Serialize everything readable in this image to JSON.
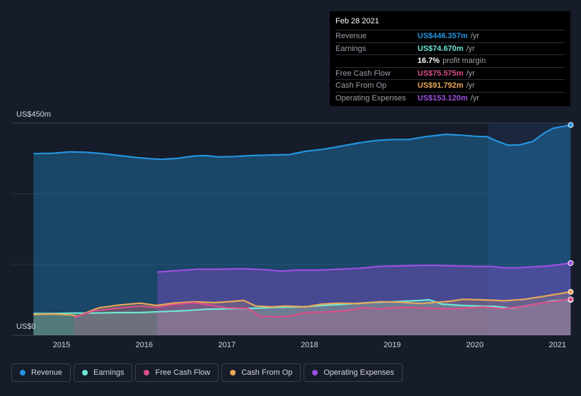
{
  "tooltip": {
    "date": "Feb 28 2021",
    "rows": [
      {
        "label": "Revenue",
        "value": "US$446.357m",
        "unit": "/yr",
        "color": "#2394df"
      },
      {
        "label": "Earnings",
        "value": "US$74.670m",
        "unit": "/yr",
        "color": "#6ee7d6"
      },
      {
        "label": "",
        "value": "16.7%",
        "unit": "profit margin",
        "color": "#ffffff"
      },
      {
        "label": "Free Cash Flow",
        "value": "US$75.575m",
        "unit": "/yr",
        "color": "#d94f8a"
      },
      {
        "label": "Cash From Op",
        "value": "US$91.792m",
        "unit": "/yr",
        "color": "#e8a85a"
      },
      {
        "label": "Operating Expenses",
        "value": "US$153.120m",
        "unit": "/yr",
        "color": "#9d4fe0"
      }
    ]
  },
  "chart_data": {
    "type": "area",
    "y_top_label": "US$450m",
    "y_bottom_label": "US$0",
    "ylim": [
      0,
      450
    ],
    "xlim": [
      2014.62,
      2021.16
    ],
    "x_ticks": [
      "2015",
      "2016",
      "2017",
      "2018",
      "2019",
      "2020",
      "2021"
    ],
    "legend_position": "bottom",
    "grid": true,
    "series": [
      {
        "name": "Revenue",
        "color": "#2394df",
        "points": [
          [
            2014.66,
            385
          ],
          [
            2014.9,
            386
          ],
          [
            2015.1,
            389
          ],
          [
            2015.3,
            388
          ],
          [
            2015.5,
            385
          ],
          [
            2015.7,
            381
          ],
          [
            2015.9,
            377
          ],
          [
            2016.1,
            374
          ],
          [
            2016.2,
            373
          ],
          [
            2016.4,
            375
          ],
          [
            2016.6,
            380
          ],
          [
            2016.75,
            381
          ],
          [
            2016.9,
            378
          ],
          [
            2017.1,
            379
          ],
          [
            2017.3,
            381
          ],
          [
            2017.5,
            382
          ],
          [
            2017.75,
            383
          ],
          [
            2017.95,
            390
          ],
          [
            2018.15,
            394
          ],
          [
            2018.35,
            400
          ],
          [
            2018.6,
            408
          ],
          [
            2018.8,
            413
          ],
          [
            2019.0,
            415
          ],
          [
            2019.2,
            415
          ],
          [
            2019.4,
            421
          ],
          [
            2019.65,
            426
          ],
          [
            2019.85,
            424
          ],
          [
            2020.0,
            422
          ],
          [
            2020.15,
            421
          ],
          [
            2020.25,
            413
          ],
          [
            2020.4,
            403
          ],
          [
            2020.55,
            404
          ],
          [
            2020.7,
            411
          ],
          [
            2020.85,
            430
          ],
          [
            2020.95,
            439
          ],
          [
            2021.16,
            446
          ]
        ]
      },
      {
        "name": "Operating Expenses",
        "color": "#9d4fe0",
        "points": [
          [
            2016.16,
            134
          ],
          [
            2016.4,
            137
          ],
          [
            2016.65,
            140
          ],
          [
            2016.9,
            140
          ],
          [
            2017.2,
            141
          ],
          [
            2017.45,
            139
          ],
          [
            2017.65,
            136
          ],
          [
            2017.85,
            138
          ],
          [
            2018.1,
            138
          ],
          [
            2018.35,
            140
          ],
          [
            2018.6,
            142
          ],
          [
            2018.85,
            146
          ],
          [
            2019.1,
            147
          ],
          [
            2019.35,
            148
          ],
          [
            2019.55,
            148
          ],
          [
            2019.75,
            147
          ],
          [
            2020.0,
            146
          ],
          [
            2020.2,
            146
          ],
          [
            2020.35,
            143
          ],
          [
            2020.5,
            143
          ],
          [
            2020.7,
            145
          ],
          [
            2020.9,
            147
          ],
          [
            2021.16,
            153
          ]
        ]
      },
      {
        "name": "Earnings",
        "color": "#6ee7d6",
        "points": [
          [
            2014.66,
            46
          ],
          [
            2014.9,
            46
          ],
          [
            2015.15,
            47
          ],
          [
            2015.4,
            47
          ],
          [
            2015.7,
            48
          ],
          [
            2015.95,
            48
          ],
          [
            2016.2,
            50
          ],
          [
            2016.5,
            52
          ],
          [
            2016.75,
            55
          ],
          [
            2017.0,
            56
          ],
          [
            2017.3,
            57
          ],
          [
            2017.6,
            59
          ],
          [
            2017.9,
            60
          ],
          [
            2018.15,
            63
          ],
          [
            2018.45,
            66
          ],
          [
            2018.7,
            69
          ],
          [
            2019.0,
            71
          ],
          [
            2019.25,
            73
          ],
          [
            2019.45,
            75
          ],
          [
            2019.6,
            66
          ],
          [
            2019.85,
            63
          ],
          [
            2020.05,
            62
          ],
          [
            2020.25,
            61
          ],
          [
            2020.45,
            57
          ],
          [
            2020.6,
            62
          ],
          [
            2020.8,
            68
          ],
          [
            2020.95,
            73
          ],
          [
            2021.16,
            75
          ]
        ]
      },
      {
        "name": "Cash From Op",
        "color": "#e8a85a",
        "points": [
          [
            2014.66,
            44
          ],
          [
            2014.9,
            45
          ],
          [
            2015.1,
            43
          ],
          [
            2015.2,
            41
          ],
          [
            2015.45,
            58
          ],
          [
            2015.7,
            64
          ],
          [
            2015.95,
            68
          ],
          [
            2016.15,
            63
          ],
          [
            2016.35,
            68
          ],
          [
            2016.6,
            71
          ],
          [
            2016.85,
            69
          ],
          [
            2017.1,
            72
          ],
          [
            2017.2,
            74
          ],
          [
            2017.35,
            62
          ],
          [
            2017.55,
            60
          ],
          [
            2017.7,
            62
          ],
          [
            2017.95,
            60
          ],
          [
            2018.15,
            66
          ],
          [
            2018.35,
            68
          ],
          [
            2018.6,
            67
          ],
          [
            2018.85,
            71
          ],
          [
            2019.1,
            70
          ],
          [
            2019.35,
            67
          ],
          [
            2019.55,
            70
          ],
          [
            2019.7,
            72
          ],
          [
            2019.85,
            76
          ],
          [
            2020.1,
            75
          ],
          [
            2020.35,
            73
          ],
          [
            2020.6,
            76
          ],
          [
            2020.85,
            83
          ],
          [
            2021.16,
            92
          ]
        ]
      },
      {
        "name": "Free Cash Flow",
        "color": "#d94f8a",
        "points": [
          [
            2015.15,
            38
          ],
          [
            2015.4,
            52
          ],
          [
            2015.65,
            57
          ],
          [
            2015.95,
            62
          ],
          [
            2016.15,
            59
          ],
          [
            2016.35,
            65
          ],
          [
            2016.6,
            69
          ],
          [
            2016.8,
            64
          ],
          [
            2017.0,
            58
          ],
          [
            2017.25,
            57
          ],
          [
            2017.4,
            40
          ],
          [
            2017.6,
            39
          ],
          [
            2017.75,
            40
          ],
          [
            2017.95,
            48
          ],
          [
            2018.2,
            49
          ],
          [
            2018.45,
            52
          ],
          [
            2018.65,
            58
          ],
          [
            2018.85,
            56
          ],
          [
            2019.1,
            59
          ],
          [
            2019.35,
            58
          ],
          [
            2019.6,
            56
          ],
          [
            2019.85,
            57
          ],
          [
            2020.1,
            60
          ],
          [
            2020.35,
            56
          ],
          [
            2020.55,
            60
          ],
          [
            2020.8,
            68
          ],
          [
            2021.16,
            76
          ]
        ]
      }
    ]
  },
  "legend": [
    {
      "label": "Revenue",
      "color": "#2394df"
    },
    {
      "label": "Earnings",
      "color": "#6ee7d6"
    },
    {
      "label": "Free Cash Flow",
      "color": "#d94f8a"
    },
    {
      "label": "Cash From Op",
      "color": "#e8a85a"
    },
    {
      "label": "Operating Expenses",
      "color": "#9d4fe0"
    }
  ]
}
